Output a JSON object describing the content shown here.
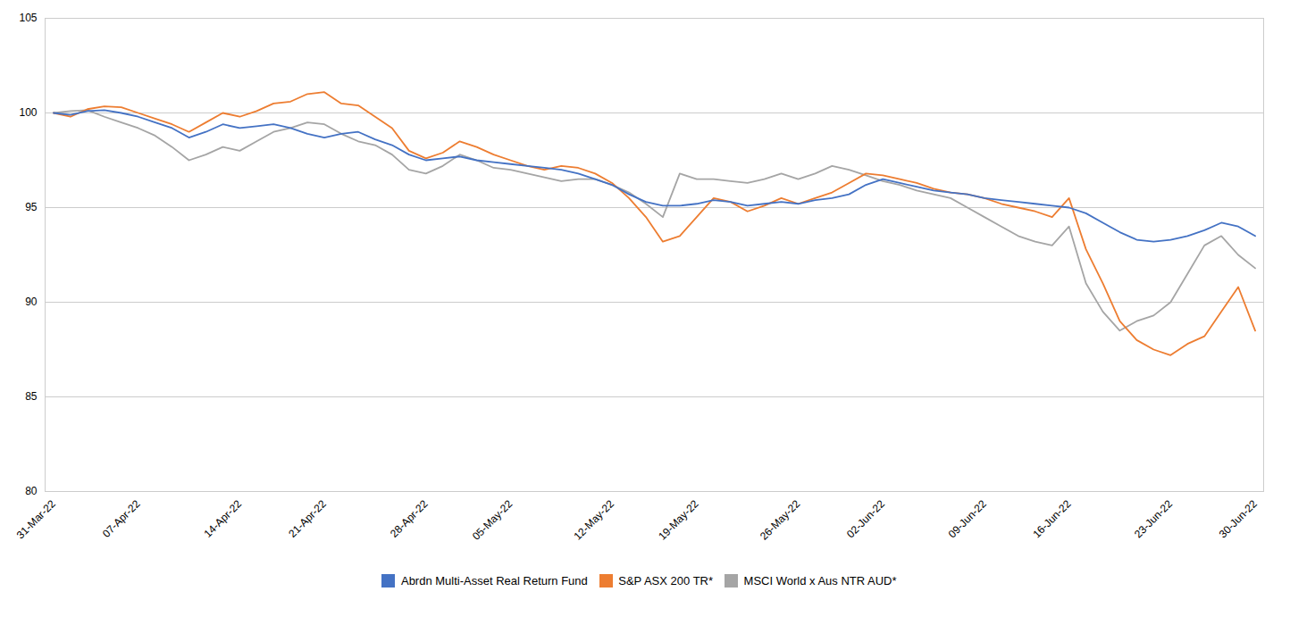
{
  "chart_data": {
    "type": "line",
    "categories": [
      "31-Mar-22",
      null,
      null,
      null,
      null,
      "07-Apr-22",
      null,
      null,
      null,
      null,
      null,
      "14-Apr-22",
      null,
      null,
      null,
      null,
      "21-Apr-22",
      null,
      null,
      null,
      null,
      null,
      "28-Apr-22",
      null,
      null,
      null,
      null,
      "05-May-22",
      null,
      null,
      null,
      null,
      null,
      "12-May-22",
      null,
      null,
      null,
      null,
      "19-May-22",
      null,
      null,
      null,
      null,
      null,
      "26-May-22",
      null,
      null,
      null,
      null,
      "02-Jun-22",
      null,
      null,
      null,
      null,
      null,
      "09-Jun-22",
      null,
      null,
      null,
      null,
      "16-Jun-22",
      null,
      null,
      null,
      null,
      null,
      "23-Jun-22",
      null,
      null,
      null,
      null,
      "30-Jun-22"
    ],
    "series": [
      {
        "name": "Abrdn Multi-Asset Real Return Fund",
        "color": "#4472C4",
        "values": [
          100.0,
          99.9,
          100.1,
          100.15,
          100.0,
          99.8,
          99.5,
          99.2,
          98.7,
          99.0,
          99.4,
          99.2,
          99.3,
          99.4,
          99.2,
          98.9,
          98.7,
          98.9,
          99.0,
          98.6,
          98.3,
          97.8,
          97.5,
          97.6,
          97.7,
          97.5,
          97.4,
          97.3,
          97.2,
          97.1,
          97.0,
          96.8,
          96.5,
          96.2,
          95.7,
          95.3,
          95.1,
          95.1,
          95.2,
          95.4,
          95.3,
          95.1,
          95.2,
          95.3,
          95.2,
          95.4,
          95.5,
          95.7,
          96.2,
          96.5,
          96.3,
          96.1,
          95.9,
          95.8,
          95.7,
          95.5,
          95.4,
          95.3,
          95.2,
          95.1,
          95.0,
          94.7,
          94.2,
          93.7,
          93.3,
          93.2,
          93.3,
          93.5,
          93.8,
          94.2,
          94.0,
          93.5
        ]
      },
      {
        "name": "S&P ASX 200 TR*",
        "color": "#ED7D31",
        "values": [
          100.0,
          99.8,
          100.2,
          100.35,
          100.3,
          100.0,
          99.7,
          99.4,
          99.0,
          99.5,
          100.0,
          99.8,
          100.1,
          100.5,
          100.6,
          101.0,
          101.1,
          100.5,
          100.4,
          99.8,
          99.2,
          98.0,
          97.6,
          97.9,
          98.5,
          98.2,
          97.8,
          97.5,
          97.2,
          97.0,
          97.2,
          97.1,
          96.8,
          96.3,
          95.5,
          94.5,
          93.2,
          93.5,
          94.5,
          95.5,
          95.3,
          94.8,
          95.1,
          95.5,
          95.2,
          95.5,
          95.8,
          96.3,
          96.8,
          96.7,
          96.5,
          96.3,
          96.0,
          95.8,
          95.7,
          95.5,
          95.2,
          95.0,
          94.8,
          94.5,
          95.5,
          92.8,
          91.0,
          89.0,
          88.0,
          87.5,
          87.2,
          87.8,
          88.2,
          89.5,
          90.8,
          88.5
        ]
      },
      {
        "name": "MSCI World x Aus NTR AUD*",
        "color": "#A5A5A5",
        "values": [
          100.0,
          100.1,
          100.15,
          99.8,
          99.5,
          99.2,
          98.8,
          98.2,
          97.5,
          97.8,
          98.2,
          98.0,
          98.5,
          99.0,
          99.2,
          99.5,
          99.4,
          98.9,
          98.5,
          98.3,
          97.8,
          97.0,
          96.8,
          97.2,
          97.8,
          97.5,
          97.1,
          97.0,
          96.8,
          96.6,
          96.4,
          96.5,
          96.5,
          96.2,
          95.8,
          95.2,
          94.5,
          96.8,
          96.5,
          96.5,
          96.4,
          96.3,
          96.5,
          96.8,
          96.5,
          96.8,
          97.2,
          97.0,
          96.7,
          96.4,
          96.2,
          95.9,
          95.7,
          95.5,
          95.0,
          94.5,
          94.0,
          93.5,
          93.2,
          93.0,
          94.0,
          91.0,
          89.5,
          88.5,
          89.0,
          89.3,
          90.0,
          91.5,
          93.0,
          93.5,
          92.5,
          91.8
        ]
      }
    ],
    "ylim": [
      80,
      105
    ],
    "yticks": [
      80,
      85,
      90,
      95,
      100,
      105
    ],
    "grid": true,
    "legend": "bottom"
  }
}
